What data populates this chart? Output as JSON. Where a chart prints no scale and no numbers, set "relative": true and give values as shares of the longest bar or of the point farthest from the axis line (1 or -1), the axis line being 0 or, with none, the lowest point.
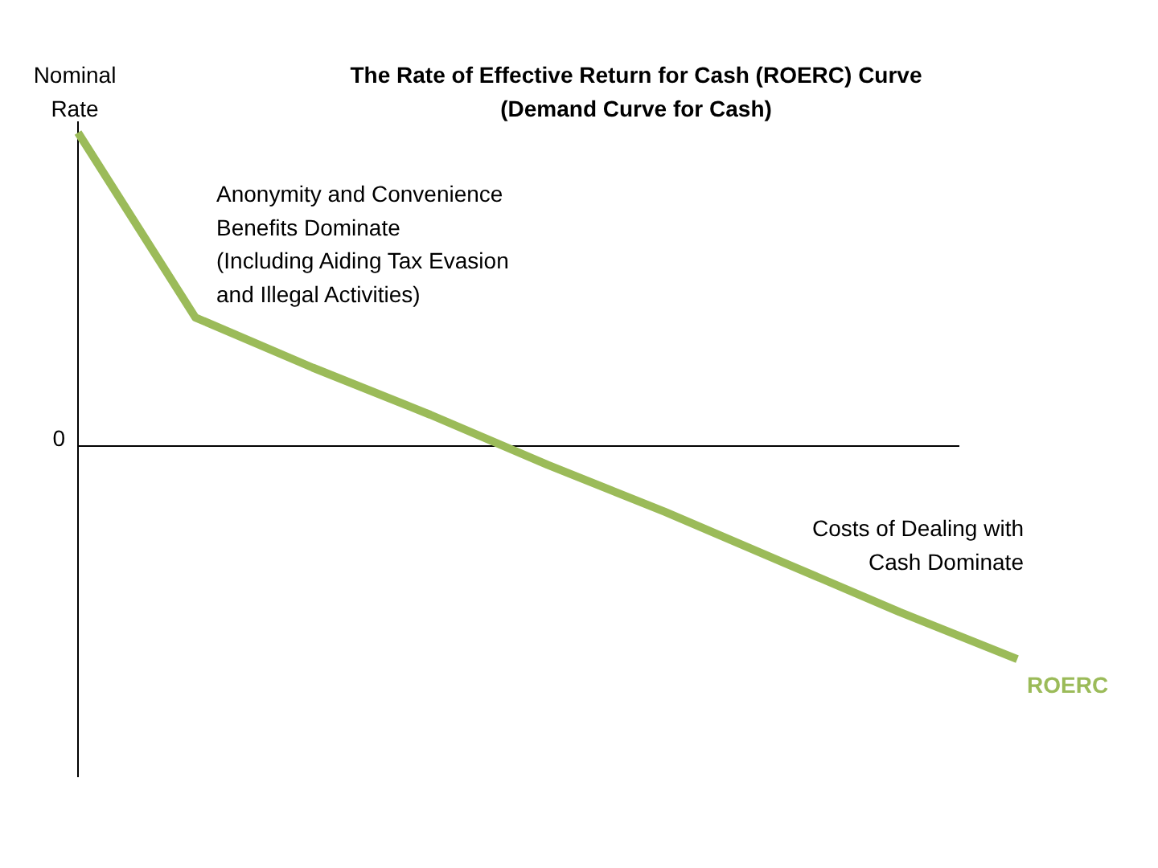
{
  "chart_data": {
    "type": "line",
    "title": "The Rate of Effective Return for Cash (ROERC) Curve\n(Demand Curve for Cash)",
    "ylabel": "Nominal Rate",
    "relative": true,
    "categories": [
      null,
      null,
      null,
      null,
      null,
      null,
      null,
      null,
      null
    ],
    "series": [
      {
        "name": "ROERC",
        "color": "#9bbb59",
        "values": [
          1,
          0.41,
          0.25,
          0.1,
          -0.06,
          -0.21,
          -0.37,
          -0.53,
          -0.68
        ]
      }
    ],
    "ref_lines": [
      {
        "axis": "y",
        "value": 0,
        "label": "0"
      }
    ],
    "annotations": [
      "Anonymity and Convenience\nBenefits Dominate\n(Including Aiding Tax Evasion\nand Illegal Activities)",
      "Costs of Dealing with\nCash Dominate"
    ],
    "grid": false,
    "marker": "none",
    "line_style": "solid"
  }
}
